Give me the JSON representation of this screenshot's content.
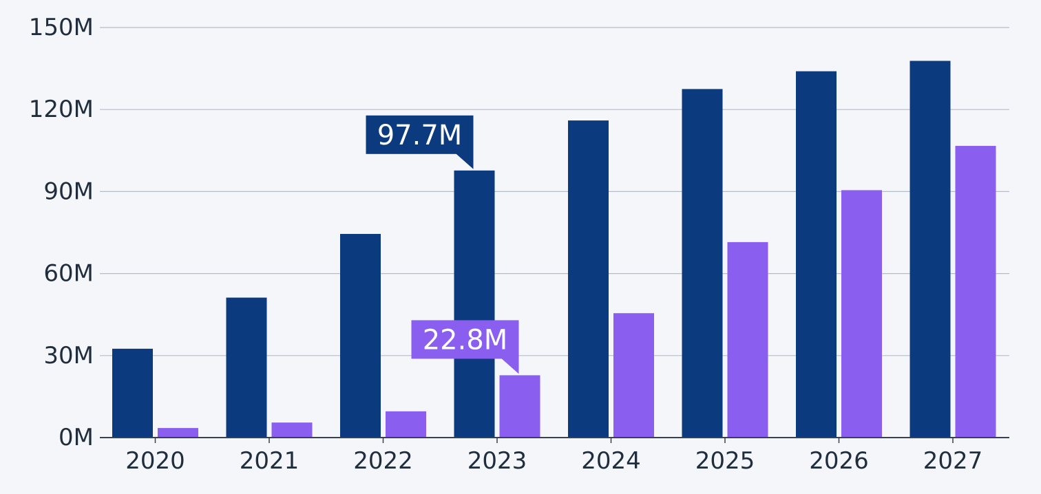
{
  "colors": {
    "background": "#f4f6fa",
    "gridline": "#b4bcc8",
    "axis": "#37414f",
    "text": "#1f2d3d"
  },
  "chart_data": {
    "type": "bar",
    "categories": [
      "2020",
      "2021",
      "2022",
      "2023",
      "2024",
      "2025",
      "2026",
      "2027"
    ],
    "series": [
      {
        "color": "#0b3a7e",
        "values": [
          32.5,
          51.2,
          74.5,
          97.7,
          116,
          127.5,
          134,
          137.8
        ]
      },
      {
        "color": "#8a5ff0",
        "values": [
          3.5,
          5.5,
          9.6,
          22.8,
          45.5,
          71.5,
          90.5,
          106.7
        ]
      }
    ],
    "ylim": [
      0,
      150
    ],
    "yticks": [
      0,
      30,
      60,
      90,
      120,
      150
    ],
    "ytick_labels": [
      "0M",
      "30M",
      "60M",
      "90M",
      "120M",
      "150M"
    ],
    "grid": true,
    "legend": "none",
    "annotations": [
      {
        "text": "97.7M",
        "category": "2023",
        "series": 0
      },
      {
        "text": "22.8M",
        "category": "2023",
        "series": 1
      }
    ]
  }
}
